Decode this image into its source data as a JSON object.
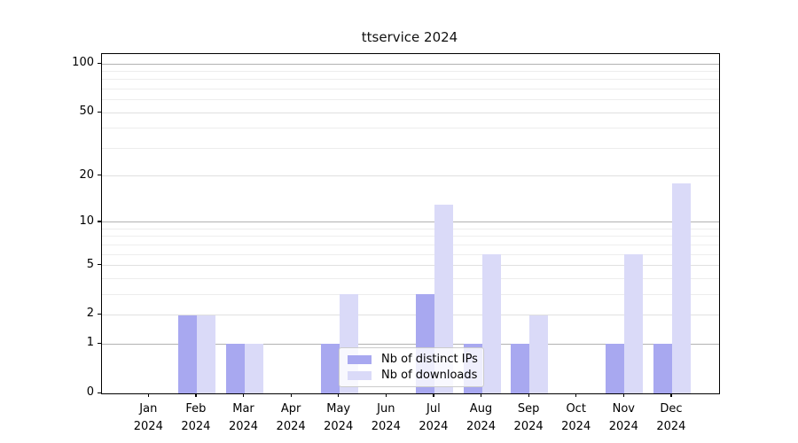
{
  "chart_data": {
    "type": "bar",
    "title": "ttservice 2024",
    "categories": [
      "Jan",
      "Feb",
      "Mar",
      "Apr",
      "May",
      "Jun",
      "Jul",
      "Aug",
      "Sep",
      "Oct",
      "Nov",
      "Dec"
    ],
    "x_year": "2024",
    "series": [
      {
        "name": "Nb of distinct IPs",
        "color": "#a8a8f0",
        "values": [
          0,
          2,
          1,
          0,
          1,
          0,
          3,
          1,
          1,
          0,
          1,
          1
        ]
      },
      {
        "name": "Nb of downloads",
        "color": "#dadaf8",
        "values": [
          0,
          2,
          1,
          0,
          3,
          0,
          13,
          6,
          2,
          0,
          6,
          18
        ]
      }
    ],
    "y_axis": {
      "scale": "log1p",
      "tick_values": [
        0,
        1,
        2,
        5,
        10,
        20,
        50,
        100
      ],
      "major_grid": [
        1,
        10,
        100
      ],
      "mid_grid": [
        2,
        5,
        20,
        50
      ],
      "minor_grid": [
        3,
        4,
        6,
        7,
        8,
        9,
        30,
        40,
        60,
        70,
        80,
        90
      ],
      "ylim": [
        0,
        112
      ]
    },
    "legend": {
      "position": "lower center inside plot"
    },
    "grid": true,
    "background": "#ffffff",
    "xlabel": "",
    "ylabel": ""
  }
}
